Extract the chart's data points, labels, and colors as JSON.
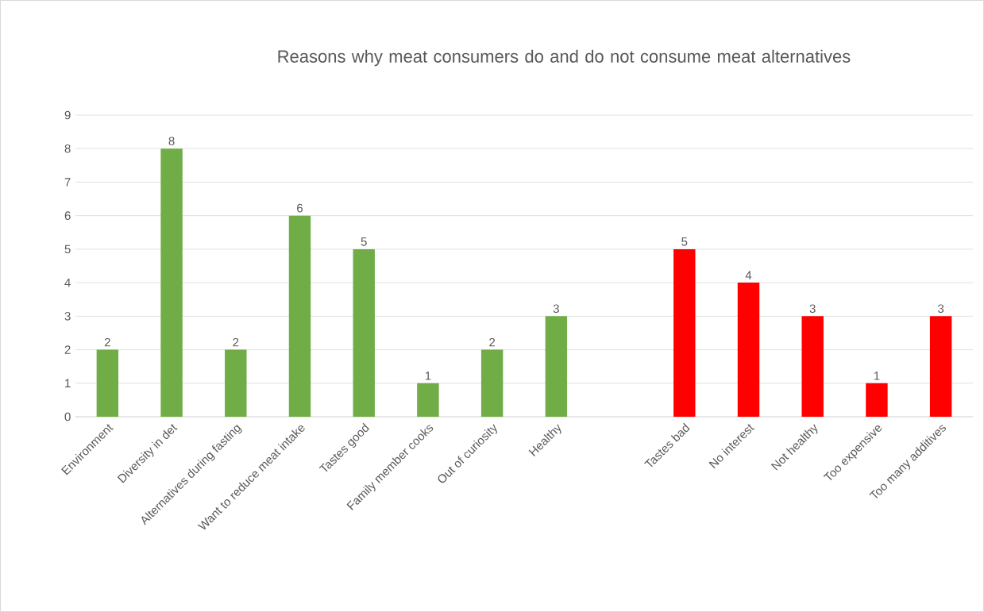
{
  "chart_data": {
    "type": "bar",
    "title": "Reasons why meat consumers do and do not consume meat alternatives",
    "categories": [
      "Environment",
      "Diversity in det",
      "Alternatives during fasting",
      "Want to reduce meat intake",
      "Tastes good",
      "Family member cooks",
      "Out of curiosity",
      "Healthy",
      null,
      "Tastes bad",
      "No interest",
      "Not healthy",
      "Too expensive",
      "Too many additives"
    ],
    "values": [
      2,
      8,
      2,
      6,
      5,
      1,
      2,
      3,
      null,
      5,
      4,
      3,
      1,
      3
    ],
    "colors": [
      "#70ad47",
      "#70ad47",
      "#70ad47",
      "#70ad47",
      "#70ad47",
      "#70ad47",
      "#70ad47",
      "#70ad47",
      "#70ad47",
      "#ff0000",
      "#ff0000",
      "#ff0000",
      "#ff0000",
      "#ff0000"
    ],
    "ylim": [
      0,
      9
    ],
    "yticks": [
      0,
      1,
      2,
      3,
      4,
      5,
      6,
      7,
      8,
      9
    ],
    "grid": "y",
    "data_labels": true
  }
}
